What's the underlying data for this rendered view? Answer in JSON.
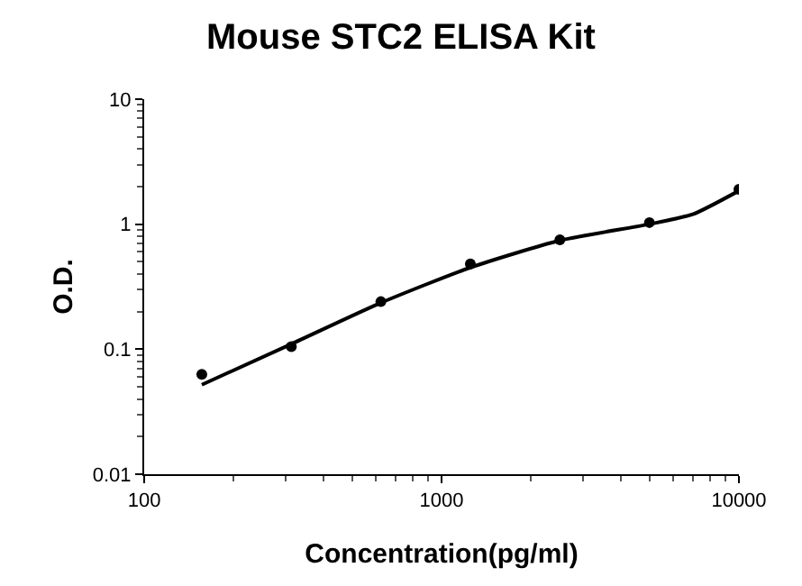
{
  "chart_data": {
    "type": "scatter",
    "title": "Mouse STC2 ELISA Kit",
    "xlabel": "Concentration(pg/ml)",
    "ylabel": "O.D.",
    "log": "xy",
    "grid": false,
    "marker": "circle",
    "xlim": [
      100,
      10000
    ],
    "xticks": [
      100,
      1000,
      10000
    ],
    "ylim": [
      0.01,
      10
    ],
    "yticks": [
      0.01,
      0.1,
      1,
      10
    ],
    "series": [
      {
        "color": "#000000",
        "x": [
          156.25,
          312.5,
          625,
          1250,
          2500,
          5000,
          10000
        ],
        "values": [
          0.063,
          0.105,
          0.24,
          0.48,
          0.75,
          1.03,
          1.9
        ]
      },
      {
        "type": "line",
        "color": "#000000",
        "marker": "none",
        "line_style": "solid",
        "x": [
          156.25,
          312.5,
          625,
          1250,
          2500,
          5000,
          7000,
          10000
        ],
        "values": [
          0.052,
          0.11,
          0.235,
          0.45,
          0.74,
          1.0,
          1.2,
          1.85
        ]
      }
    ]
  }
}
